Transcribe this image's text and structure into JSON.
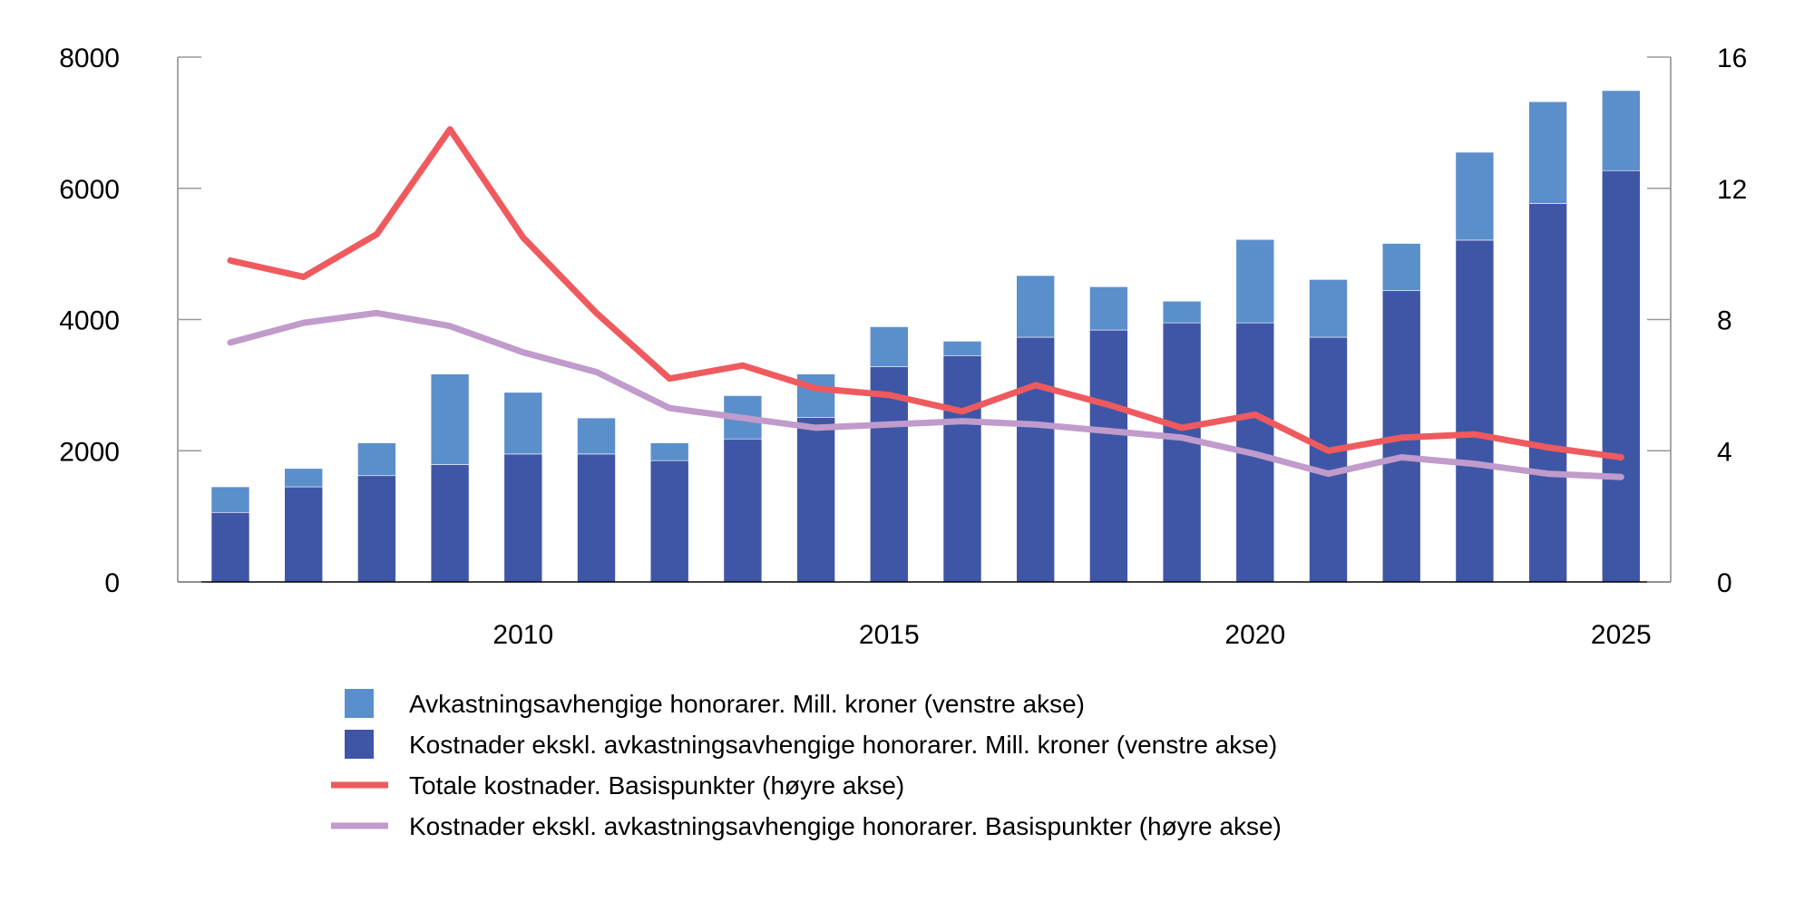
{
  "chart_data": {
    "type": "bar+line",
    "title": "",
    "xlabel": "",
    "categories": [
      2006,
      2007,
      2008,
      2009,
      2010,
      2011,
      2012,
      2013,
      2014,
      2015,
      2016,
      2017,
      2018,
      2019,
      2020,
      2021,
      2022,
      2023,
      2024,
      2025
    ],
    "x_ticks": [
      "2010",
      "2015",
      "2020",
      "2025"
    ],
    "y_left": {
      "lim": [
        0,
        8000
      ],
      "ticks": [
        "0",
        "2000",
        "4000",
        "6000",
        "8000"
      ]
    },
    "y_right": {
      "lim": [
        0,
        16
      ],
      "ticks": [
        "0",
        "4",
        "8",
        "12",
        "16"
      ]
    },
    "grid": false,
    "legend_position": "bottom",
    "series": [
      {
        "name": "Kostnader ekskl. avkastningsavhengige honorarer. Mill. kroner (venstre akse)",
        "kind": "stacked-bar",
        "axis": "left",
        "color": "#3f56a6",
        "values": [
          1060,
          1450,
          1620,
          1790,
          1950,
          1950,
          1850,
          2180,
          2510,
          3280,
          3450,
          3730,
          3840,
          3950,
          3950,
          3730,
          4440,
          5210,
          5770,
          6270
        ]
      },
      {
        "name": "Avkastningsavhengige honorarer. Mill. kroner (venstre akse)",
        "kind": "stacked-bar",
        "axis": "left",
        "color": "#5b8fcb",
        "values": [
          390,
          280,
          500,
          1380,
          940,
          550,
          270,
          660,
          660,
          610,
          220,
          940,
          660,
          330,
          1270,
          880,
          720,
          1340,
          1550,
          1220
        ]
      },
      {
        "name": "Totale kostnader. Basispunkter (høyre akse)",
        "kind": "line",
        "axis": "right",
        "color": "#ef5a5e",
        "values": [
          9.8,
          9.3,
          10.6,
          13.8,
          10.5,
          8.2,
          6.2,
          6.6,
          5.9,
          5.7,
          5.2,
          6.0,
          5.4,
          4.7,
          5.1,
          4.0,
          4.4,
          4.5,
          4.1,
          3.8
        ]
      },
      {
        "name": "Kostnader ekskl. avkastningsavhengige honorarer. Basispunkter (høyre akse)",
        "kind": "line",
        "axis": "right",
        "color": "#c09bcb",
        "values": [
          7.3,
          7.9,
          8.2,
          7.8,
          7.0,
          6.4,
          5.3,
          5.0,
          4.7,
          4.8,
          4.9,
          4.8,
          4.6,
          4.4,
          3.9,
          3.3,
          3.8,
          3.6,
          3.3,
          3.2
        ]
      }
    ],
    "legend": [
      {
        "label": "Avkastningsavhengige honorarer. Mill. kroner (venstre akse)",
        "symbol": "box",
        "color": "#5b8fcb"
      },
      {
        "label": "Kostnader ekskl. avkastningsavhengige honorarer. Mill. kroner (venstre akse)",
        "symbol": "box",
        "color": "#3f56a6"
      },
      {
        "label": "Totale kostnader. Basispunkter (høyre akse)",
        "symbol": "line",
        "color": "#ef5a5e"
      },
      {
        "label": "Kostnader ekskl. avkastningsavhengige honorarer. Basispunkter (høyre akse)",
        "symbol": "line",
        "color": "#c09bcb"
      }
    ]
  }
}
